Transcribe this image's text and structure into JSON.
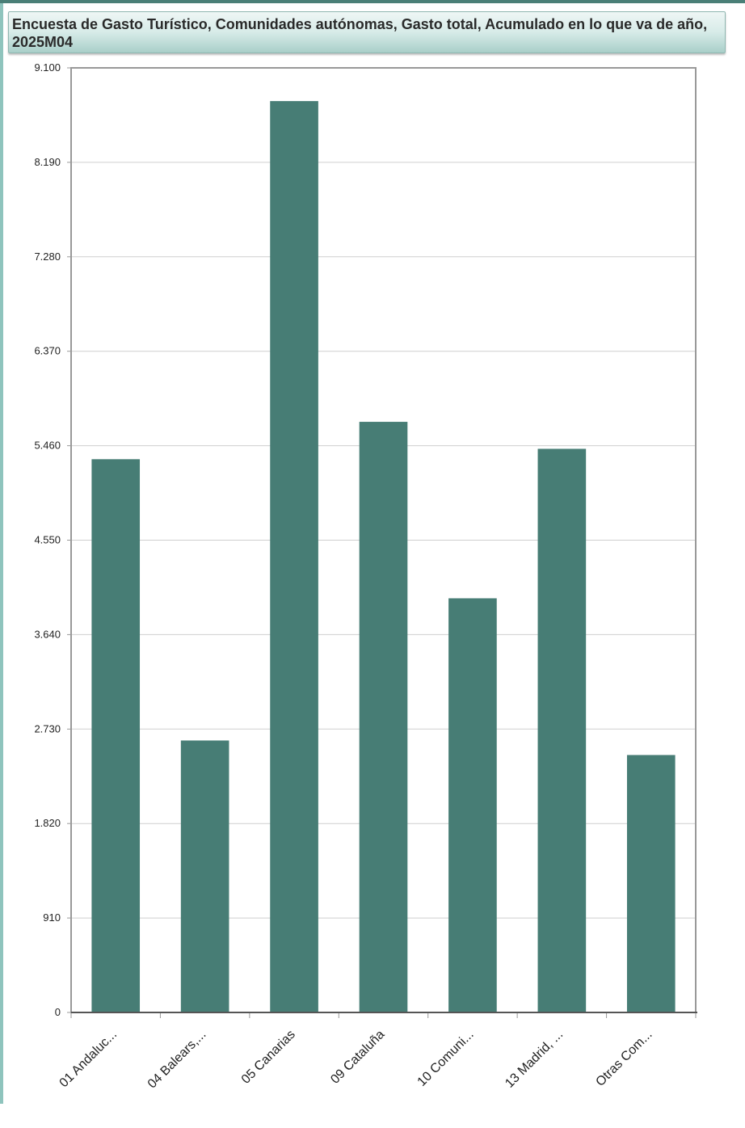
{
  "colors": {
    "bar": "#477d75",
    "grid": "#cfcfcf",
    "frame": "#999999",
    "top_stripe": "#4a7f77",
    "left_stripe": "#8fc4bd"
  },
  "chart_data": {
    "type": "bar",
    "title": "Encuesta de Gasto Turístico, Comunidades autónomas, Gasto total, Acumulado en lo que va de año, 2025M04",
    "xlabel": "",
    "ylabel": "",
    "ylim": [
      0,
      9100
    ],
    "yticks": [
      0,
      910,
      1820,
      2730,
      3640,
      4550,
      5460,
      6370,
      7280,
      8190,
      9100
    ],
    "ytick_labels": [
      "0",
      "910",
      "1.820",
      "2.730",
      "3.640",
      "4.550",
      "5.460",
      "6.370",
      "7.280",
      "8.190",
      "9.100"
    ],
    "grid": true,
    "legend": "none",
    "categories": [
      "01 Andaluc...",
      "04 Balears,...",
      "05 Canarias",
      "09 Cataluña",
      "10 Comuni...",
      "13 Madrid, ...",
      "Otras Com..."
    ],
    "values": [
      5330,
      2620,
      8780,
      5690,
      3990,
      5430,
      2480
    ]
  }
}
